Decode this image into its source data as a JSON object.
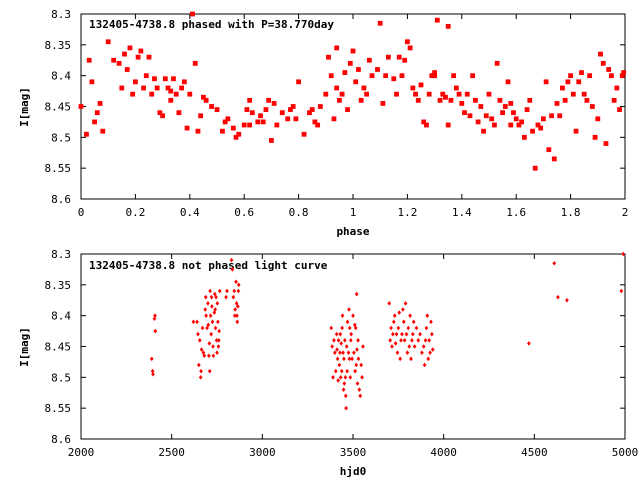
{
  "chart_data": [
    {
      "type": "scatter",
      "title": "132405-4738.8 phased with P=38.770day",
      "xlabel": "phase",
      "ylabel": "I[mag]",
      "xlim": [
        0,
        2
      ],
      "ylim": [
        8.3,
        8.6
      ],
      "y_inverted": true,
      "x_ticks": [
        "0",
        "0.2",
        "0.4",
        "0.6",
        "0.8",
        "1",
        "1.2",
        "1.4",
        "1.6",
        "1.8",
        "2"
      ],
      "y_ticks": [
        "8.3",
        "8.35",
        "8.4",
        "8.45",
        "8.5",
        "8.55",
        "8.6"
      ],
      "marker_color": "#ff0000",
      "grid": false,
      "points": [
        [
          0.0,
          8.45
        ],
        [
          0.02,
          8.495
        ],
        [
          0.03,
          8.375
        ],
        [
          0.04,
          8.41
        ],
        [
          0.05,
          8.475
        ],
        [
          0.06,
          8.46
        ],
        [
          0.07,
          8.445
        ],
        [
          0.08,
          8.49
        ],
        [
          0.1,
          8.345
        ],
        [
          0.12,
          8.375
        ],
        [
          0.14,
          8.38
        ],
        [
          0.15,
          8.42
        ],
        [
          0.16,
          8.365
        ],
        [
          0.17,
          8.39
        ],
        [
          0.18,
          8.355
        ],
        [
          0.19,
          8.43
        ],
        [
          0.2,
          8.41
        ],
        [
          0.21,
          8.37
        ],
        [
          0.22,
          8.36
        ],
        [
          0.23,
          8.42
        ],
        [
          0.24,
          8.4
        ],
        [
          0.25,
          8.37
        ],
        [
          0.26,
          8.43
        ],
        [
          0.27,
          8.405
        ],
        [
          0.28,
          8.42
        ],
        [
          0.29,
          8.46
        ],
        [
          0.3,
          8.465
        ],
        [
          0.31,
          8.405
        ],
        [
          0.32,
          8.42
        ],
        [
          0.33,
          8.44
        ],
        [
          0.34,
          8.405
        ],
        [
          0.35,
          8.43
        ],
        [
          0.36,
          8.46
        ],
        [
          0.37,
          8.42
        ],
        [
          0.38,
          8.41
        ],
        [
          0.39,
          8.485
        ],
        [
          0.4,
          8.43
        ],
        [
          0.41,
          8.3
        ],
        [
          0.42,
          8.38
        ],
        [
          0.43,
          8.49
        ],
        [
          0.44,
          8.465
        ],
        [
          0.45,
          8.435
        ],
        [
          0.46,
          8.44
        ],
        [
          0.48,
          8.45
        ],
        [
          0.5,
          8.455
        ],
        [
          0.52,
          8.49
        ],
        [
          0.53,
          8.475
        ],
        [
          0.54,
          8.47
        ],
        [
          0.56,
          8.485
        ],
        [
          0.57,
          8.5
        ],
        [
          0.58,
          8.495
        ],
        [
          0.6,
          8.48
        ],
        [
          0.61,
          8.455
        ],
        [
          0.62,
          8.44
        ],
        [
          0.63,
          8.46
        ],
        [
          0.65,
          8.475
        ],
        [
          0.66,
          8.465
        ],
        [
          0.67,
          8.475
        ],
        [
          0.68,
          8.455
        ],
        [
          0.69,
          8.44
        ],
        [
          0.7,
          8.505
        ],
        [
          0.71,
          8.445
        ],
        [
          0.72,
          8.48
        ],
        [
          0.74,
          8.46
        ],
        [
          0.76,
          8.47
        ],
        [
          0.77,
          8.455
        ],
        [
          0.78,
          8.45
        ],
        [
          0.79,
          8.47
        ],
        [
          0.8,
          8.41
        ],
        [
          0.82,
          8.495
        ],
        [
          0.84,
          8.46
        ],
        [
          0.85,
          8.455
        ],
        [
          0.86,
          8.475
        ],
        [
          0.87,
          8.48
        ],
        [
          0.88,
          8.45
        ],
        [
          0.9,
          8.43
        ],
        [
          0.91,
          8.37
        ],
        [
          0.92,
          8.4
        ],
        [
          0.93,
          8.47
        ],
        [
          0.94,
          8.42
        ],
        [
          0.95,
          8.44
        ],
        [
          0.96,
          8.43
        ],
        [
          0.97,
          8.395
        ],
        [
          0.98,
          8.455
        ],
        [
          0.99,
          8.38
        ],
        [
          1.0,
          8.36
        ],
        [
          1.01,
          8.41
        ],
        [
          1.02,
          8.39
        ],
        [
          1.03,
          8.44
        ],
        [
          1.04,
          8.42
        ],
        [
          1.05,
          8.43
        ],
        [
          1.06,
          8.375
        ],
        [
          1.07,
          8.4
        ],
        [
          1.09,
          8.39
        ],
        [
          1.1,
          8.315
        ],
        [
          1.11,
          8.445
        ],
        [
          1.12,
          8.4
        ],
        [
          1.13,
          8.37
        ],
        [
          1.15,
          8.405
        ],
        [
          1.16,
          8.43
        ],
        [
          1.17,
          8.37
        ],
        [
          1.18,
          8.4
        ],
        [
          1.19,
          8.375
        ],
        [
          1.2,
          8.345
        ],
        [
          1.21,
          8.355
        ],
        [
          1.22,
          8.42
        ],
        [
          1.23,
          8.43
        ],
        [
          1.24,
          8.44
        ],
        [
          1.25,
          8.415
        ],
        [
          1.26,
          8.475
        ],
        [
          1.27,
          8.48
        ],
        [
          1.28,
          8.43
        ],
        [
          1.29,
          8.4
        ],
        [
          1.3,
          8.395
        ],
        [
          1.31,
          8.31
        ],
        [
          1.32,
          8.44
        ],
        [
          1.33,
          8.43
        ],
        [
          1.34,
          8.435
        ],
        [
          1.35,
          8.48
        ],
        [
          1.36,
          8.44
        ],
        [
          1.37,
          8.4
        ],
        [
          1.38,
          8.42
        ],
        [
          1.39,
          8.43
        ],
        [
          1.4,
          8.445
        ],
        [
          1.41,
          8.46
        ],
        [
          1.42,
          8.43
        ],
        [
          1.43,
          8.465
        ],
        [
          1.44,
          8.4
        ],
        [
          1.45,
          8.44
        ],
        [
          1.46,
          8.475
        ],
        [
          1.47,
          8.45
        ],
        [
          1.48,
          8.49
        ],
        [
          1.49,
          8.465
        ],
        [
          1.5,
          8.43
        ],
        [
          1.51,
          8.47
        ],
        [
          1.52,
          8.48
        ],
        [
          1.53,
          8.38
        ],
        [
          1.54,
          8.44
        ],
        [
          1.55,
          8.46
        ],
        [
          1.56,
          8.45
        ],
        [
          1.57,
          8.41
        ],
        [
          1.58,
          8.445
        ],
        [
          1.59,
          8.46
        ],
        [
          1.6,
          8.47
        ],
        [
          1.61,
          8.48
        ],
        [
          1.62,
          8.475
        ],
        [
          1.63,
          8.5
        ],
        [
          1.64,
          8.455
        ],
        [
          1.65,
          8.44
        ],
        [
          1.66,
          8.49
        ],
        [
          1.67,
          8.55
        ],
        [
          1.68,
          8.48
        ],
        [
          1.69,
          8.485
        ],
        [
          1.7,
          8.47
        ],
        [
          1.71,
          8.41
        ],
        [
          1.72,
          8.52
        ],
        [
          1.73,
          8.465
        ],
        [
          1.74,
          8.535
        ],
        [
          1.75,
          8.445
        ],
        [
          1.76,
          8.465
        ],
        [
          1.77,
          8.42
        ],
        [
          1.78,
          8.44
        ],
        [
          1.79,
          8.41
        ],
        [
          1.8,
          8.4
        ],
        [
          1.81,
          8.43
        ],
        [
          1.82,
          8.49
        ],
        [
          1.83,
          8.41
        ],
        [
          1.84,
          8.395
        ],
        [
          1.85,
          8.43
        ],
        [
          1.86,
          8.44
        ],
        [
          1.87,
          8.4
        ],
        [
          1.88,
          8.45
        ],
        [
          1.89,
          8.5
        ],
        [
          1.9,
          8.47
        ],
        [
          1.91,
          8.365
        ],
        [
          1.92,
          8.38
        ],
        [
          1.93,
          8.51
        ],
        [
          1.94,
          8.39
        ],
        [
          1.95,
          8.4
        ],
        [
          1.96,
          8.44
        ],
        [
          1.97,
          8.42
        ],
        [
          1.98,
          8.455
        ],
        [
          1.99,
          8.4
        ],
        [
          1.995,
          8.395
        ],
        [
          1.3,
          8.4
        ],
        [
          1.35,
          8.32
        ],
        [
          0.94,
          8.355
        ],
        [
          0.33,
          8.425
        ],
        [
          0.62,
          8.48
        ],
        [
          1.58,
          8.48
        ]
      ]
    },
    {
      "type": "scatter",
      "title": "132405-4738.8 not phased light curve",
      "xlabel": "hjd0",
      "ylabel": "I[mag]",
      "xlim": [
        2000,
        5000
      ],
      "ylim": [
        8.3,
        8.6
      ],
      "y_inverted": true,
      "x_ticks": [
        "2000",
        "2500",
        "3000",
        "3500",
        "4000",
        "4500",
        "5000"
      ],
      "y_ticks": [
        "8.3",
        "8.35",
        "8.4",
        "8.45",
        "8.5",
        "8.55",
        "8.6"
      ],
      "marker_color": "#ff0000",
      "grid": false,
      "points": [
        [
          2390,
          8.47
        ],
        [
          2395,
          8.49
        ],
        [
          2397,
          8.495
        ],
        [
          2405,
          8.405
        ],
        [
          2408,
          8.4
        ],
        [
          2410,
          8.425
        ],
        [
          2620,
          8.41
        ],
        [
          2640,
          8.41
        ],
        [
          2645,
          8.43
        ],
        [
          2650,
          8.48
        ],
        [
          2655,
          8.44
        ],
        [
          2660,
          8.5
        ],
        [
          2662,
          8.49
        ],
        [
          2665,
          8.455
        ],
        [
          2670,
          8.42
        ],
        [
          2675,
          8.46
        ],
        [
          2680,
          8.465
        ],
        [
          2685,
          8.39
        ],
        [
          2688,
          8.37
        ],
        [
          2690,
          8.4
        ],
        [
          2695,
          8.42
        ],
        [
          2700,
          8.38
        ],
        [
          2702,
          8.415
        ],
        [
          2705,
          8.465
        ],
        [
          2708,
          8.445
        ],
        [
          2710,
          8.49
        ],
        [
          2712,
          8.36
        ],
        [
          2715,
          8.4
        ],
        [
          2718,
          8.43
        ],
        [
          2720,
          8.37
        ],
        [
          2722,
          8.385
        ],
        [
          2725,
          8.41
        ],
        [
          2728,
          8.45
        ],
        [
          2730,
          8.465
        ],
        [
          2735,
          8.395
        ],
        [
          2738,
          8.365
        ],
        [
          2740,
          8.39
        ],
        [
          2742,
          8.42
        ],
        [
          2745,
          8.37
        ],
        [
          2748,
          8.44
        ],
        [
          2750,
          8.46
        ],
        [
          2752,
          8.38
        ],
        [
          2755,
          8.41
        ],
        [
          2758,
          8.45
        ],
        [
          2760,
          8.44
        ],
        [
          2762,
          8.425
        ],
        [
          2765,
          8.36
        ],
        [
          2800,
          8.37
        ],
        [
          2805,
          8.36
        ],
        [
          2830,
          8.31
        ],
        [
          2835,
          8.325
        ],
        [
          2840,
          8.37
        ],
        [
          2845,
          8.36
        ],
        [
          2848,
          8.4
        ],
        [
          2850,
          8.39
        ],
        [
          2855,
          8.345
        ],
        [
          2858,
          8.38
        ],
        [
          2860,
          8.4
        ],
        [
          2862,
          8.41
        ],
        [
          2865,
          8.385
        ],
        [
          2868,
          8.36
        ],
        [
          2870,
          8.35
        ],
        [
          3380,
          8.42
        ],
        [
          3385,
          8.45
        ],
        [
          3390,
          8.5
        ],
        [
          3395,
          8.44
        ],
        [
          3400,
          8.46
        ],
        [
          3405,
          8.49
        ],
        [
          3410,
          8.43
        ],
        [
          3412,
          8.455
        ],
        [
          3415,
          8.47
        ],
        [
          3418,
          8.505
        ],
        [
          3420,
          8.44
        ],
        [
          3425,
          8.48
        ],
        [
          3428,
          8.46
        ],
        [
          3430,
          8.43
        ],
        [
          3432,
          8.5
        ],
        [
          3435,
          8.445
        ],
        [
          3438,
          8.49
        ],
        [
          3440,
          8.42
        ],
        [
          3442,
          8.4
        ],
        [
          3445,
          8.46
        ],
        [
          3448,
          8.52
        ],
        [
          3450,
          8.47
        ],
        [
          3452,
          8.51
        ],
        [
          3455,
          8.44
        ],
        [
          3458,
          8.5
        ],
        [
          3460,
          8.53
        ],
        [
          3462,
          8.55
        ],
        [
          3465,
          8.45
        ],
        [
          3468,
          8.49
        ],
        [
          3470,
          8.41
        ],
        [
          3475,
          8.46
        ],
        [
          3478,
          8.39
        ],
        [
          3480,
          8.47
        ],
        [
          3482,
          8.42
        ],
        [
          3485,
          8.5
        ],
        [
          3488,
          8.44
        ],
        [
          3490,
          8.43
        ],
        [
          3495,
          8.47
        ],
        [
          3500,
          8.4
        ],
        [
          3505,
          8.46
        ],
        [
          3510,
          8.415
        ],
        [
          3512,
          8.49
        ],
        [
          3515,
          8.42
        ],
        [
          3518,
          8.48
        ],
        [
          3520,
          8.365
        ],
        [
          3522,
          8.455
        ],
        [
          3525,
          8.51
        ],
        [
          3528,
          8.44
        ],
        [
          3530,
          8.47
        ],
        [
          3535,
          8.52
        ],
        [
          3540,
          8.53
        ],
        [
          3545,
          8.48
        ],
        [
          3550,
          8.5
        ],
        [
          3555,
          8.45
        ],
        [
          3700,
          8.38
        ],
        [
          3705,
          8.44
        ],
        [
          3710,
          8.42
        ],
        [
          3715,
          8.45
        ],
        [
          3720,
          8.43
        ],
        [
          3725,
          8.41
        ],
        [
          3730,
          8.4
        ],
        [
          3735,
          8.445
        ],
        [
          3740,
          8.43
        ],
        [
          3745,
          8.46
        ],
        [
          3750,
          8.42
        ],
        [
          3755,
          8.395
        ],
        [
          3760,
          8.47
        ],
        [
          3765,
          8.44
        ],
        [
          3770,
          8.43
        ],
        [
          3775,
          8.39
        ],
        [
          3780,
          8.41
        ],
        [
          3785,
          8.44
        ],
        [
          3790,
          8.38
        ],
        [
          3795,
          8.43
        ],
        [
          3800,
          8.46
        ],
        [
          3805,
          8.42
        ],
        [
          3810,
          8.45
        ],
        [
          3815,
          8.4
        ],
        [
          3820,
          8.47
        ],
        [
          3825,
          8.44
        ],
        [
          3830,
          8.43
        ],
        [
          3835,
          8.41
        ],
        [
          3840,
          8.45
        ],
        [
          3850,
          8.42
        ],
        [
          3860,
          8.44
        ],
        [
          3870,
          8.43
        ],
        [
          3880,
          8.46
        ],
        [
          3890,
          8.45
        ],
        [
          3895,
          8.48
        ],
        [
          3900,
          8.44
        ],
        [
          3905,
          8.42
        ],
        [
          3910,
          8.4
        ],
        [
          3915,
          8.47
        ],
        [
          3920,
          8.44
        ],
        [
          3925,
          8.46
        ],
        [
          3930,
          8.41
        ],
        [
          3935,
          8.43
        ],
        [
          3940,
          8.455
        ],
        [
          4470,
          8.445
        ],
        [
          4610,
          8.315
        ],
        [
          4630,
          8.37
        ],
        [
          4680,
          8.375
        ],
        [
          4980,
          8.36
        ],
        [
          4990,
          8.3
        ]
      ]
    }
  ]
}
